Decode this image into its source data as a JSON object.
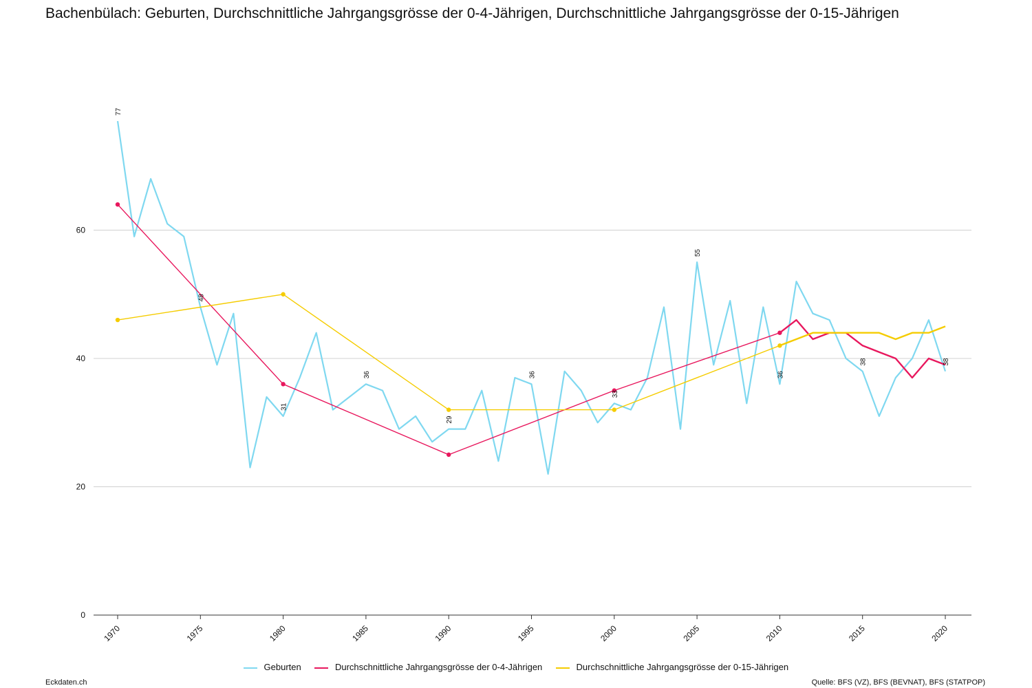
{
  "title": "Bachenbülach: Geburten, Durchschnittliche Jahrgangsgrösse der 0-4-Jährigen, Durchschnittliche Jahrgangsgrösse der 0-15-Jährigen",
  "footer": {
    "left": "Eckdaten.ch",
    "right": "Quelle: BFS (VZ), BFS (BEVNAT), BFS (STATPOP)"
  },
  "chart_data": {
    "type": "line",
    "xlim": [
      1970,
      2020
    ],
    "ylim": [
      0,
      80
    ],
    "y_ticks": [
      0,
      20,
      40,
      60
    ],
    "x_ticks": [
      1970,
      1975,
      1980,
      1985,
      1990,
      1995,
      2000,
      2005,
      2010,
      2015,
      2020
    ],
    "grid": true,
    "legend_position": "bottom",
    "series": [
      {
        "name": "Geburten",
        "color": "#7fd8f0",
        "x": [
          1970,
          1971,
          1972,
          1973,
          1974,
          1975,
          1976,
          1977,
          1978,
          1979,
          1980,
          1981,
          1982,
          1983,
          1984,
          1985,
          1986,
          1987,
          1988,
          1989,
          1990,
          1991,
          1992,
          1993,
          1994,
          1995,
          1996,
          1997,
          1998,
          1999,
          2000,
          2001,
          2002,
          2003,
          2004,
          2005,
          2006,
          2007,
          2008,
          2009,
          2010,
          2011,
          2012,
          2013,
          2014,
          2015,
          2016,
          2017,
          2018,
          2019,
          2020
        ],
        "values": [
          77,
          59,
          68,
          61,
          59,
          48,
          39,
          47,
          23,
          34,
          31,
          37,
          44,
          32,
          34,
          36,
          35,
          29,
          31,
          27,
          29,
          29,
          35,
          24,
          37,
          36,
          22,
          38,
          35,
          30,
          33,
          32,
          37,
          48,
          29,
          55,
          39,
          49,
          33,
          48,
          36,
          52,
          47,
          46,
          40,
          38,
          31,
          37,
          40,
          46,
          38
        ],
        "labels": [
          {
            "x": 1970,
            "text": "77"
          },
          {
            "x": 1975,
            "text": "48"
          },
          {
            "x": 1980,
            "text": "31"
          },
          {
            "x": 1985,
            "text": "36"
          },
          {
            "x": 1990,
            "text": "29"
          },
          {
            "x": 1995,
            "text": "36"
          },
          {
            "x": 2000,
            "text": "33"
          },
          {
            "x": 2005,
            "text": "55"
          },
          {
            "x": 2010,
            "text": "36"
          },
          {
            "x": 2015,
            "text": "38"
          },
          {
            "x": 2020,
            "text": "38"
          }
        ]
      },
      {
        "name": "Durchschnittliche Jahrgangsgrösse der 0-4-Jährigen",
        "color": "#e8175d",
        "x": [
          1970,
          1980,
          1990,
          2000,
          2010,
          2011,
          2012,
          2013,
          2014,
          2015,
          2016,
          2017,
          2018,
          2019,
          2020
        ],
        "values": [
          64,
          36,
          25,
          35,
          44,
          46,
          43,
          44,
          44,
          42,
          41,
          40,
          37,
          40,
          39
        ],
        "markers": [
          1970,
          1980,
          1990,
          2000,
          2010
        ]
      },
      {
        "name": "Durchschnittliche Jahrgangsgrösse der 0-15-Jährigen",
        "color": "#f5cc00",
        "x": [
          1970,
          1980,
          1990,
          2000,
          2010,
          2011,
          2012,
          2013,
          2014,
          2015,
          2016,
          2017,
          2018,
          2019,
          2020
        ],
        "values": [
          46,
          50,
          32,
          32,
          42,
          43,
          44,
          44,
          44,
          44,
          44,
          43,
          44,
          44,
          45
        ],
        "markers": [
          1970,
          1980,
          1990,
          2000,
          2010
        ]
      }
    ]
  }
}
